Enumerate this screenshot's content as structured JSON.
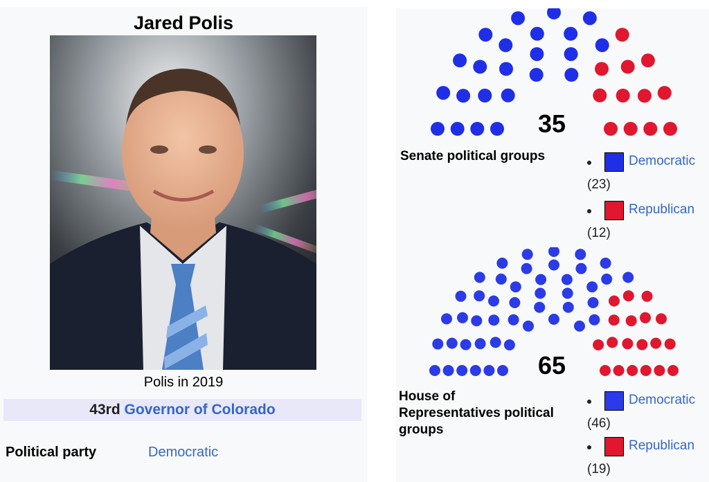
{
  "infobox": {
    "name": "Jared Polis",
    "caption": "Polis in 2019",
    "office_ordinal": "43rd",
    "office_link": "Governor of Colorado",
    "party_label": "Political party",
    "party_value": "Democratic"
  },
  "senate": {
    "total": "35",
    "label": "Senate political groups",
    "groups": [
      {
        "name": "Democratic",
        "count_text": "(23)",
        "seats": 23,
        "color": "#1f2fe8"
      },
      {
        "name": "Republican",
        "count_text": "(12)",
        "seats": 12,
        "color": "#e0172f"
      }
    ]
  },
  "house": {
    "total": "65",
    "label_lines": [
      "House of",
      "Representatives political",
      "groups"
    ],
    "groups": [
      {
        "name": "Democratic",
        "count_text": "(46)",
        "seats": 46,
        "color": "#2b3be8"
      },
      {
        "name": "Republican",
        "count_text": "(19)",
        "seats": 19,
        "color": "#e0172f"
      }
    ]
  }
}
